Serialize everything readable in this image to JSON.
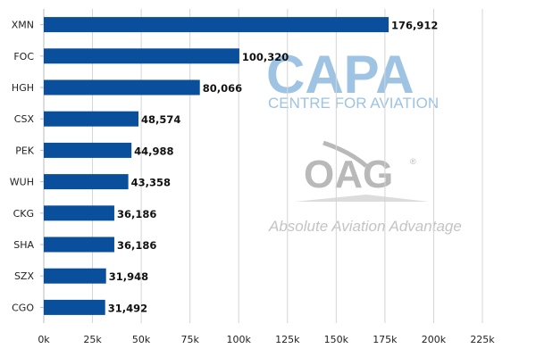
{
  "chart_data": {
    "type": "bar",
    "orientation": "horizontal",
    "categories": [
      "XMN",
      "FOC",
      "HGH",
      "CSX",
      "PEK",
      "WUH",
      "CKG",
      "SHA",
      "SZX",
      "CGO"
    ],
    "values": [
      176912,
      100320,
      80066,
      48574,
      44988,
      43358,
      36186,
      36186,
      31948,
      31492
    ],
    "value_labels": [
      "176,912",
      "100,320",
      "80,066",
      "48,574",
      "44,988",
      "43,358",
      "36,186",
      "36,186",
      "31,948",
      "31,492"
    ],
    "x_ticks": [
      "0k",
      "25k",
      "50k",
      "75k",
      "100k",
      "125k",
      "150k",
      "175k",
      "200k",
      "225k"
    ],
    "xlim": [
      0,
      225000
    ],
    "grid": true,
    "bar_color": "#0a4f9c",
    "grid_color": "#d4d4d4"
  },
  "watermark": {
    "capa_title": "CAPA",
    "capa_subtitle": "CENTRE FOR AVIATION",
    "oag_logo": "OAG",
    "oag_mark": "®",
    "oag_tagline": "Absolute Aviation Advantage",
    "capa_color": "#9ec3e3",
    "oag_color": "#b9b9b9"
  }
}
